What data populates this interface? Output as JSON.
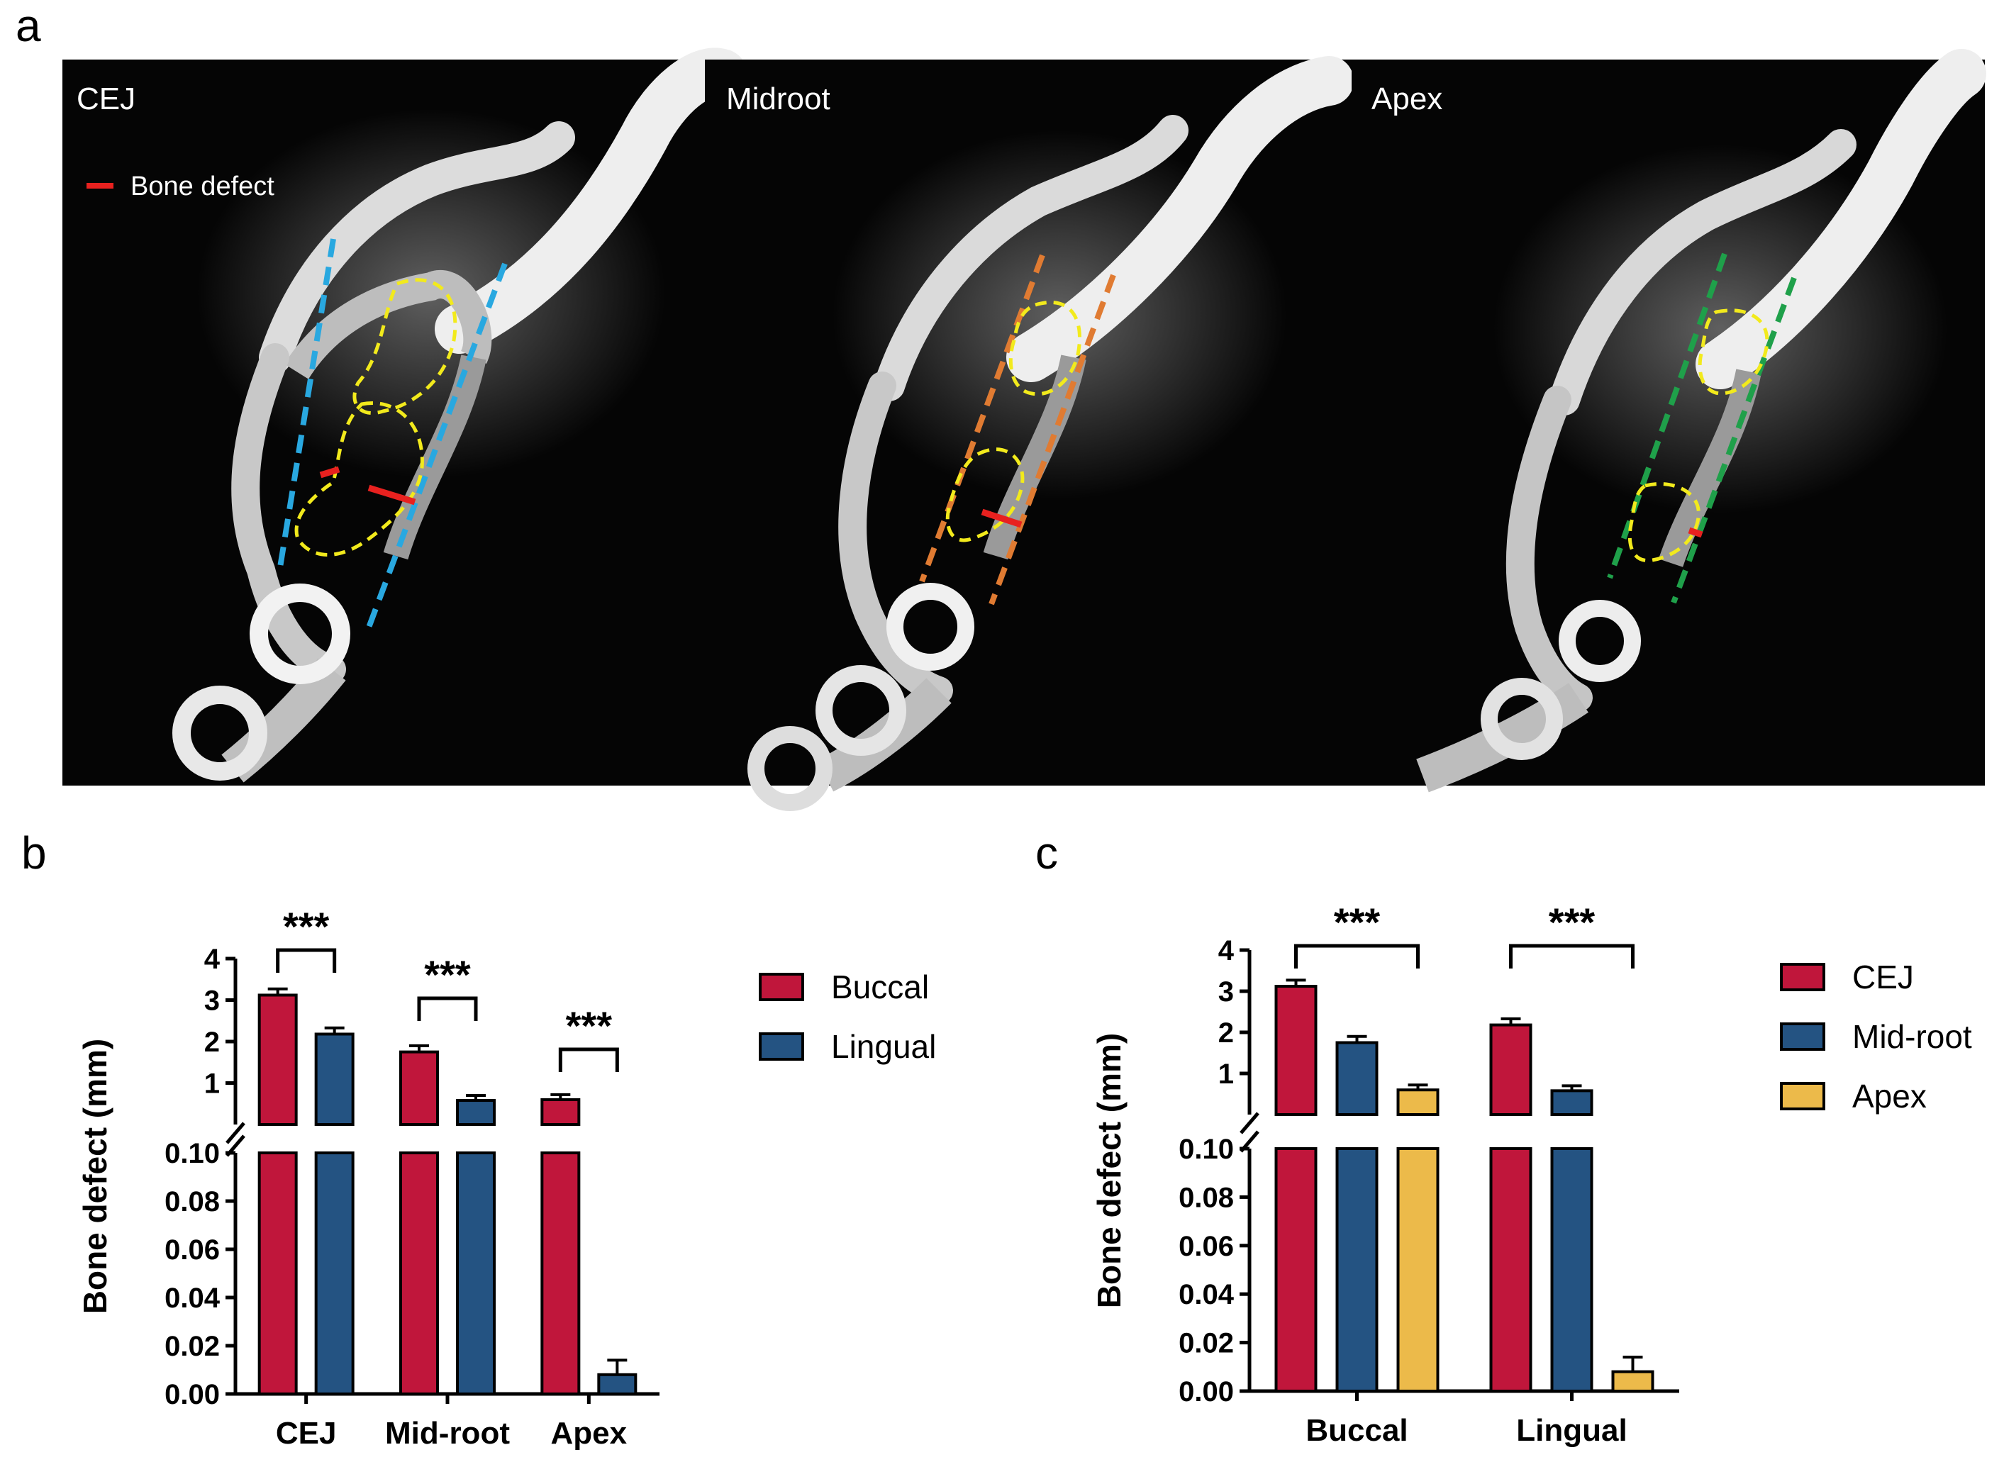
{
  "panel_a": {
    "letter": "a",
    "legend_label": "Bone defect",
    "images": [
      {
        "label": "CEJ",
        "line_color": "#29a8e0"
      },
      {
        "label": "Midroot",
        "line_color": "#e07b32"
      },
      {
        "label": "Apex",
        "line_color": "#1fa04a"
      }
    ],
    "outline_color": "#f2ea1c",
    "defect_color": "#e8211f"
  },
  "chart_data": [
    {
      "panel": "b",
      "type": "bar",
      "ylabel": "Bone defect (mm)",
      "broken_axis": true,
      "upper_ylim": [
        0,
        4
      ],
      "upper_ticks": [
        "1",
        "2",
        "3",
        "4"
      ],
      "lower_ylim": [
        0,
        0.1
      ],
      "lower_ticks": [
        "0.00",
        "0.02",
        "0.04",
        "0.06",
        "0.08",
        "0.10"
      ],
      "categories": [
        "CEJ",
        "Mid-root",
        "Apex"
      ],
      "series": [
        {
          "name": "Buccal",
          "color": "#c0163b",
          "values": [
            3.12,
            1.75,
            0.6
          ],
          "errors": [
            0.15,
            0.15,
            0.12
          ]
        },
        {
          "name": "Lingual",
          "color": "#245382",
          "values": [
            2.18,
            0.58,
            0.008
          ],
          "errors": [
            0.15,
            0.12,
            0.006
          ]
        }
      ],
      "significance": [
        {
          "label": "***",
          "category": 0
        },
        {
          "label": "***",
          "category": 1
        },
        {
          "label": "***",
          "category": 2
        }
      ],
      "legend": "right"
    },
    {
      "panel": "c",
      "type": "bar",
      "ylabel": "Bone defect (mm)",
      "broken_axis": true,
      "upper_ylim": [
        0,
        4
      ],
      "upper_ticks": [
        "1",
        "2",
        "3",
        "4"
      ],
      "lower_ylim": [
        0,
        0.1
      ],
      "lower_ticks": [
        "0.00",
        "0.02",
        "0.04",
        "0.06",
        "0.08",
        "0.10"
      ],
      "categories": [
        "Buccal",
        "Lingual"
      ],
      "series": [
        {
          "name": "CEJ",
          "color": "#c0163b",
          "values": [
            3.12,
            2.18
          ],
          "errors": [
            0.15,
            0.15
          ]
        },
        {
          "name": "Mid-root",
          "color": "#245382",
          "values": [
            1.75,
            0.58
          ],
          "errors": [
            0.15,
            0.12
          ]
        },
        {
          "name": "Apex",
          "color": "#ecba4a",
          "values": [
            0.6,
            0.008
          ],
          "errors": [
            0.12,
            0.006
          ]
        }
      ],
      "significance": [
        {
          "label": "***",
          "category": 0
        },
        {
          "label": "***",
          "category": 1
        }
      ],
      "legend": "right"
    }
  ]
}
